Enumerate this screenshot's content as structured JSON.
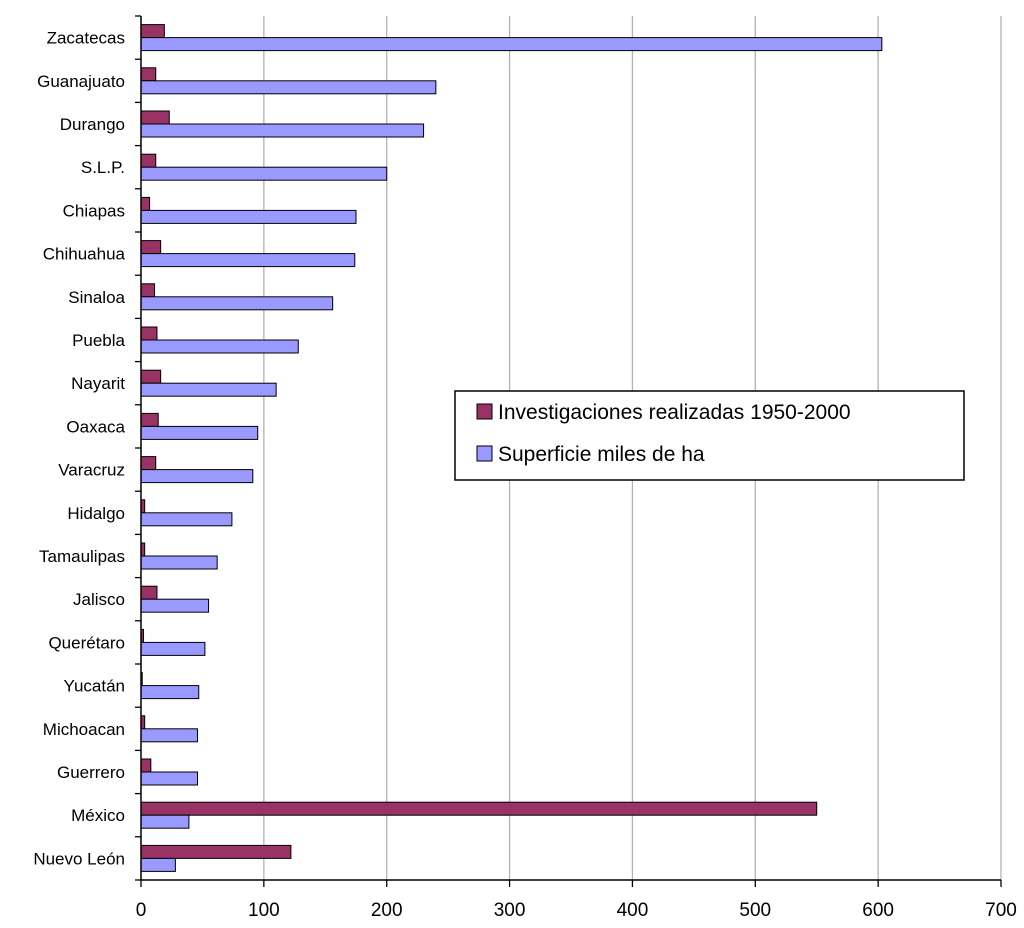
{
  "chart_data": {
    "type": "bar",
    "orientation": "horizontal",
    "title": "",
    "xlabel": "",
    "ylabel": "",
    "xlim": [
      0,
      700
    ],
    "xticks": [
      "0",
      "100",
      "200",
      "300",
      "400",
      "500",
      "600",
      "700"
    ],
    "grid": "vertical",
    "legend_position": "center-right",
    "categories": [
      "Zacatecas",
      "Guanajuato",
      "Durango",
      "S.L.P.",
      "Chiapas",
      "Chihuahua",
      "Sinaloa",
      "Puebla",
      "Nayarit",
      "Oaxaca",
      "Varacruz",
      "Hidalgo",
      "Tamaulipas",
      "Jalisco",
      "Querétaro",
      "Yucatán",
      "Michoacan",
      "Guerrero",
      "México",
      "Nuevo León"
    ],
    "series": [
      {
        "name": "Investigaciones realizadas 1950-2000",
        "color": "#993366",
        "values": [
          19,
          12,
          23,
          12,
          7,
          16,
          11,
          13,
          16,
          14,
          12,
          3,
          3,
          13,
          2,
          1,
          3,
          8,
          550,
          122
        ]
      },
      {
        "name": "Superficie miles de ha",
        "color": "#9999FF",
        "values": [
          603,
          240,
          230,
          200,
          175,
          174,
          156,
          128,
          110,
          95,
          91,
          74,
          62,
          55,
          52,
          47,
          46,
          46,
          39,
          28
        ]
      }
    ]
  }
}
